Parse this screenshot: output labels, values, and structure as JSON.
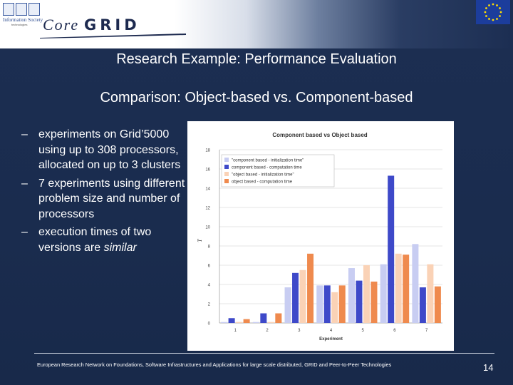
{
  "header": {
    "is_logo_line1": "Information Society",
    "is_logo_line2": "technologies",
    "logo_core": "Core",
    "logo_grid": "GRID"
  },
  "slide": {
    "title": "Research Example: Performance Evaluation",
    "subtitle": "Comparison: Object-based vs. Component-based",
    "bullets": [
      {
        "dash": "–",
        "text": "experiments on Grid’5000 using up to 308 processors, allocated on up to 3 clusters"
      },
      {
        "dash": "–",
        "text": "7 experiments using different problem size and number of processors"
      },
      {
        "dash": "–",
        "text": "execution times of two versions are ",
        "emph": "similar"
      }
    ],
    "footer": "European Research Network on Foundations, Software Infrastructures and Applications for large scale distributed, GRID and Peer-to-Peer Technologies",
    "page_number": "14"
  },
  "colors": {
    "comp_init": "#c8cdf2",
    "comp_comp": "#3e49c9",
    "obj_init": "#fad2b6",
    "obj_comp": "#ef8a4e"
  },
  "chart_data": {
    "type": "bar",
    "title": "Component based vs Object based",
    "xlabel": "Experiment",
    "ylabel": "T",
    "categories": [
      "1",
      "2",
      "3",
      "4",
      "5",
      "6",
      "7"
    ],
    "ylim": [
      0,
      18
    ],
    "yticks": [
      "0",
      "2",
      "4",
      "6",
      "8",
      "10",
      "12",
      "14",
      "16",
      "18"
    ],
    "grid": true,
    "legend_position": "top-left",
    "series": [
      {
        "name": "\"component based - initialization time\"",
        "values": [
          0.1,
          0.1,
          3.7,
          3.9,
          5.7,
          6.1,
          8.2
        ]
      },
      {
        "name": "component based - computation time",
        "values": [
          0.5,
          1.0,
          5.2,
          3.9,
          4.4,
          15.3,
          3.7
        ]
      },
      {
        "name": "\"object based - initialization time\"",
        "values": [
          0.1,
          0.1,
          5.5,
          3.2,
          6.0,
          7.2,
          6.1
        ]
      },
      {
        "name": "object based - computation time",
        "values": [
          0.4,
          1.0,
          7.2,
          3.9,
          4.3,
          7.1,
          3.8
        ]
      }
    ]
  }
}
